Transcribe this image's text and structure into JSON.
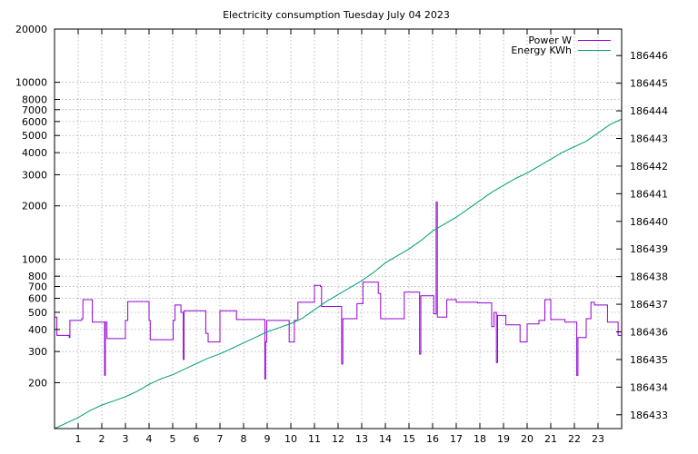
{
  "chart_data": {
    "type": "line",
    "title": "Electricity consumption Tuesday July 04 2023",
    "x": {
      "range": [
        0,
        24
      ],
      "tick_values": [
        1,
        2,
        3,
        4,
        5,
        6,
        7,
        8,
        9,
        10,
        11,
        12,
        13,
        14,
        15,
        16,
        17,
        18,
        19,
        20,
        21,
        22,
        23
      ],
      "tick_labels": [
        "1",
        "2",
        "3",
        "4",
        "5",
        "6",
        "7",
        "8",
        "9",
        "10",
        "11",
        "12",
        "13",
        "14",
        "15",
        "16",
        "17",
        "18",
        "19",
        "20",
        "21",
        "22",
        "23"
      ],
      "grid": true
    },
    "y_left": {
      "scale": "log",
      "range": [
        110,
        20000
      ],
      "tick_values": [
        200,
        300,
        400,
        500,
        600,
        700,
        800,
        1000,
        2000,
        3000,
        4000,
        5000,
        6000,
        7000,
        8000,
        10000,
        20000
      ],
      "tick_labels": [
        "200",
        "300",
        "400",
        "500",
        "600",
        "700",
        "800",
        "1000",
        "2000",
        "3000",
        "4000",
        "5000",
        "6000",
        "7000",
        "8000",
        "10000",
        "20000"
      ],
      "grid": true
    },
    "y_right": {
      "scale": "linear",
      "range": [
        186432.5,
        186446.96
      ],
      "tick_values": [
        186433,
        186434,
        186435,
        186436,
        186437,
        186438,
        186439,
        186440,
        186441,
        186442,
        186443,
        186444,
        186445,
        186446
      ],
      "tick_labels": [
        "186433",
        "186434",
        "186435",
        "186436",
        "186437",
        "186438",
        "186439",
        "186440",
        "186441",
        "186442",
        "186443",
        "186444",
        "186445",
        "186446"
      ]
    },
    "legend": {
      "placement": "top-right",
      "entries": [
        {
          "label": "Power W",
          "color": "#9400d3"
        },
        {
          "label": "Energy KWh",
          "color": "#009e73"
        }
      ]
    },
    "series": [
      {
        "name": "Power W",
        "axis": "left",
        "color": "#9400d3",
        "step": true,
        "points": [
          [
            0.0,
            470
          ],
          [
            0.1,
            370
          ],
          [
            0.62,
            360
          ],
          [
            0.65,
            450
          ],
          [
            1.15,
            460
          ],
          [
            1.2,
            590
          ],
          [
            1.6,
            440
          ],
          [
            2.1,
            440
          ],
          [
            2.12,
            220
          ],
          [
            2.15,
            440
          ],
          [
            2.22,
            355
          ],
          [
            2.95,
            355
          ],
          [
            3.0,
            450
          ],
          [
            3.1,
            575
          ],
          [
            3.95,
            575
          ],
          [
            4.0,
            450
          ],
          [
            4.05,
            350
          ],
          [
            4.98,
            350
          ],
          [
            5.02,
            450
          ],
          [
            5.1,
            550
          ],
          [
            5.35,
            500
          ],
          [
            5.45,
            270
          ],
          [
            5.48,
            510
          ],
          [
            6.3,
            510
          ],
          [
            6.4,
            380
          ],
          [
            6.5,
            340
          ],
          [
            6.95,
            340
          ],
          [
            7.0,
            510
          ],
          [
            7.65,
            510
          ],
          [
            7.7,
            455
          ],
          [
            8.8,
            455
          ],
          [
            8.9,
            210
          ],
          [
            8.93,
            340
          ],
          [
            8.98,
            450
          ],
          [
            9.9,
            450
          ],
          [
            9.93,
            340
          ],
          [
            10.15,
            450
          ],
          [
            10.3,
            570
          ],
          [
            10.9,
            570
          ],
          [
            11.0,
            710
          ],
          [
            11.25,
            700
          ],
          [
            11.3,
            540
          ],
          [
            12.05,
            540
          ],
          [
            12.15,
            255
          ],
          [
            12.2,
            460
          ],
          [
            12.7,
            460
          ],
          [
            12.8,
            560
          ],
          [
            13.05,
            740
          ],
          [
            13.55,
            740
          ],
          [
            13.7,
            640
          ],
          [
            13.8,
            460
          ],
          [
            14.7,
            460
          ],
          [
            14.8,
            650
          ],
          [
            15.4,
            650
          ],
          [
            15.45,
            290
          ],
          [
            15.5,
            620
          ],
          [
            16.0,
            620
          ],
          [
            16.05,
            490
          ],
          [
            16.15,
            2100
          ],
          [
            16.2,
            470
          ],
          [
            16.45,
            470
          ],
          [
            16.6,
            590
          ],
          [
            17.0,
            570
          ],
          [
            17.5,
            570
          ],
          [
            17.9,
            565
          ],
          [
            18.45,
            565
          ],
          [
            18.5,
            415
          ],
          [
            18.6,
            500
          ],
          [
            18.7,
            260
          ],
          [
            18.75,
            480
          ],
          [
            19.0,
            480
          ],
          [
            19.1,
            425
          ],
          [
            19.6,
            425
          ],
          [
            19.7,
            340
          ],
          [
            19.95,
            340
          ],
          [
            20.0,
            430
          ],
          [
            20.3,
            430
          ],
          [
            20.5,
            450
          ],
          [
            20.75,
            590
          ],
          [
            21.0,
            455
          ],
          [
            21.5,
            455
          ],
          [
            21.6,
            440
          ],
          [
            22.05,
            440
          ],
          [
            22.1,
            220
          ],
          [
            22.15,
            360
          ],
          [
            22.4,
            360
          ],
          [
            22.5,
            460
          ],
          [
            22.7,
            570
          ],
          [
            22.85,
            550
          ],
          [
            23.35,
            550
          ],
          [
            23.4,
            440
          ],
          [
            23.8,
            440
          ],
          [
            23.85,
            370
          ],
          [
            24.0,
            370
          ]
        ]
      },
      {
        "name": "Energy KWh",
        "axis": "right",
        "color": "#009e73",
        "step": false,
        "points": [
          [
            0.0,
            186432.5
          ],
          [
            0.5,
            186432.7
          ],
          [
            1.0,
            186432.9
          ],
          [
            1.5,
            186433.15
          ],
          [
            2.0,
            186433.35
          ],
          [
            2.5,
            186433.5
          ],
          [
            3.0,
            186433.65
          ],
          [
            3.5,
            186433.85
          ],
          [
            4.0,
            186434.1
          ],
          [
            4.5,
            186434.3
          ],
          [
            5.0,
            186434.45
          ],
          [
            5.5,
            186434.65
          ],
          [
            6.0,
            186434.85
          ],
          [
            6.5,
            186435.05
          ],
          [
            7.0,
            186435.2
          ],
          [
            7.5,
            186435.4
          ],
          [
            8.0,
            186435.6
          ],
          [
            8.5,
            186435.8
          ],
          [
            9.0,
            186436.0
          ],
          [
            9.5,
            186436.15
          ],
          [
            10.0,
            186436.3
          ],
          [
            10.5,
            186436.5
          ],
          [
            11.0,
            186436.8
          ],
          [
            11.5,
            186437.1
          ],
          [
            12.0,
            186437.35
          ],
          [
            12.5,
            186437.6
          ],
          [
            13.0,
            186437.85
          ],
          [
            13.5,
            186438.15
          ],
          [
            14.0,
            186438.5
          ],
          [
            14.5,
            186438.75
          ],
          [
            15.0,
            186439.0
          ],
          [
            15.5,
            186439.3
          ],
          [
            16.0,
            186439.65
          ],
          [
            16.5,
            186439.9
          ],
          [
            17.0,
            186440.15
          ],
          [
            17.5,
            186440.45
          ],
          [
            18.0,
            186440.75
          ],
          [
            18.5,
            186441.05
          ],
          [
            19.0,
            186441.3
          ],
          [
            19.5,
            186441.55
          ],
          [
            20.0,
            186441.75
          ],
          [
            20.5,
            186442.0
          ],
          [
            21.0,
            186442.25
          ],
          [
            21.5,
            186442.5
          ],
          [
            22.0,
            186442.7
          ],
          [
            22.5,
            186442.9
          ],
          [
            23.0,
            186443.2
          ],
          [
            23.5,
            186443.5
          ],
          [
            24.0,
            186443.7
          ]
        ]
      }
    ]
  }
}
